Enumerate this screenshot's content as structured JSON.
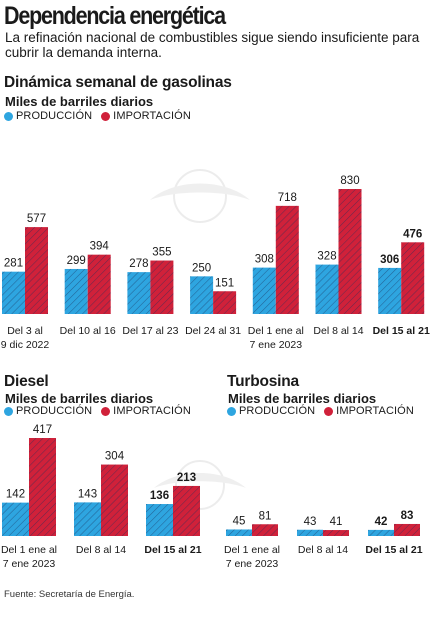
{
  "header": {
    "title": "Dependencia energética",
    "subtitle": "La refinación nacional de combustibles sigue siendo insuficiente para cubrir la demanda interna."
  },
  "sections": {
    "gasolinas": {
      "title": "Dinámica semanal de gasolinas",
      "units": "Miles de barriles diarios"
    },
    "diesel": {
      "title": "Diesel",
      "units": "Miles de barriles diarios"
    },
    "turbosina": {
      "title": "Turbosina",
      "units": "Miles de barriles diarios"
    }
  },
  "legend": {
    "produccion": "PRODUCCIÓN",
    "importacion": "IMPORTACIÓN"
  },
  "colors": {
    "produccion": "#2ea5e0",
    "importacion": "#d0213a",
    "hatch": "#1a2f5a"
  },
  "source": "Fuente: Secretaría de Energía.",
  "chart_data": [
    {
      "id": "gasolinas",
      "type": "bar",
      "title": "Dinámica semanal de gasolinas",
      "ylabel": "Miles de barriles diarios",
      "categories": [
        [
          "Del 3 al",
          "9 dic 2022"
        ],
        [
          "Del 10 al 16"
        ],
        [
          "Del 17 al 23"
        ],
        [
          "Del 24 al 31"
        ],
        [
          "Del 1 ene al",
          "7 ene 2023"
        ],
        [
          "Del 8 al 14"
        ],
        [
          "Del 15 al 21"
        ]
      ],
      "series": [
        {
          "name": "PRODUCCIÓN",
          "values": [
            281,
            299,
            278,
            250,
            308,
            328,
            306
          ]
        },
        {
          "name": "IMPORTACIÓN",
          "values": [
            577,
            394,
            355,
            151,
            718,
            830,
            476
          ]
        }
      ],
      "highlight_last": true,
      "legend": "top-left",
      "grid": false
    },
    {
      "id": "diesel",
      "type": "bar",
      "title": "Diesel",
      "ylabel": "Miles de barriles diarios",
      "categories": [
        [
          "Del 1 ene al",
          "7 ene 2023"
        ],
        [
          "Del 8 al 14"
        ],
        [
          "Del 15 al 21"
        ]
      ],
      "series": [
        {
          "name": "PRODUCCIÓN",
          "values": [
            142,
            143,
            136
          ]
        },
        {
          "name": "IMPORTACIÓN",
          "values": [
            417,
            304,
            213
          ]
        }
      ],
      "highlight_last": true,
      "legend": "top-left",
      "grid": false
    },
    {
      "id": "turbosina",
      "type": "bar",
      "title": "Turbosina",
      "ylabel": "Miles de barriles diarios",
      "categories": [
        [
          "Del 1 ene al",
          "7 ene 2023"
        ],
        [
          "Del 8 al 14"
        ],
        [
          "Del 15 al 21"
        ]
      ],
      "series": [
        {
          "name": "PRODUCCIÓN",
          "values": [
            45,
            43,
            42
          ]
        },
        {
          "name": "IMPORTACIÓN",
          "values": [
            81,
            41,
            83
          ]
        }
      ],
      "highlight_last": true,
      "legend": "top-left",
      "grid": false
    }
  ]
}
